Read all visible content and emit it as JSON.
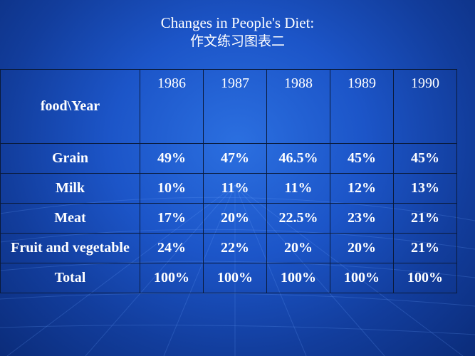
{
  "title": {
    "line1": "Changes in People's Diet:",
    "line2": "作文练习图表二"
  },
  "table": {
    "corner": "food\\Year",
    "years": [
      "1986",
      "1987",
      "1988",
      "1989",
      "1990"
    ],
    "rows": [
      {
        "food": "Grain",
        "values": [
          "49%",
          "47%",
          "46.5%",
          "45%",
          "45%"
        ]
      },
      {
        "food": "Milk",
        "values": [
          "10%",
          "11%",
          "11%",
          "12%",
          "13%"
        ]
      },
      {
        "food": "Meat",
        "values": [
          "17%",
          "20%",
          "22.5%",
          "23%",
          "21%"
        ]
      },
      {
        "food": "Fruit and vegetable",
        "values": [
          "24%",
          "22%",
          "20%",
          "20%",
          "21%"
        ]
      },
      {
        "food": "Total",
        "values": [
          "100%",
          "100%",
          "100%",
          "100%",
          "100%"
        ]
      }
    ]
  },
  "colors": {
    "background": "#1c55c8",
    "text": "#ffffff",
    "grid": "#0a1a3a"
  }
}
